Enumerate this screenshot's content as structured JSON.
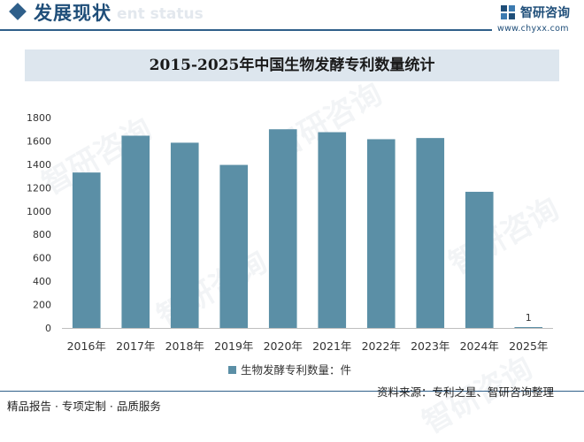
{
  "header": {
    "title": "发展现状",
    "subtitle": "ent status",
    "brand_name": "智研咨询",
    "brand_url": "www.chyxx.com"
  },
  "chart_data": {
    "type": "bar",
    "title": "2015-2025年中国生物发酵专利数量统计",
    "categories": [
      "2016年",
      "2017年",
      "2018年",
      "2019年",
      "2020年",
      "2021年",
      "2022年",
      "2023年",
      "2024年",
      "2025年"
    ],
    "series": [
      {
        "name": "生物发酵专利数量：件",
        "values": [
          1330,
          1645,
          1585,
          1395,
          1700,
          1675,
          1615,
          1625,
          1165,
          1
        ]
      }
    ],
    "data_labels": [
      {
        "category": "2025年",
        "text": "1"
      }
    ],
    "ylim": [
      0,
      1800
    ],
    "yticks": [
      0,
      200,
      400,
      600,
      800,
      1000,
      1200,
      1400,
      1600,
      1800
    ],
    "grid": false,
    "legend": "bottom",
    "colors": {
      "bar": "#5b8fa6",
      "axis": "#bfbfbf"
    }
  },
  "footer": {
    "left": "精品报告 · 专项定制 · 品质服务",
    "source": "资料来源：专利之星、智研咨询整理"
  },
  "watermark": "智研咨询"
}
